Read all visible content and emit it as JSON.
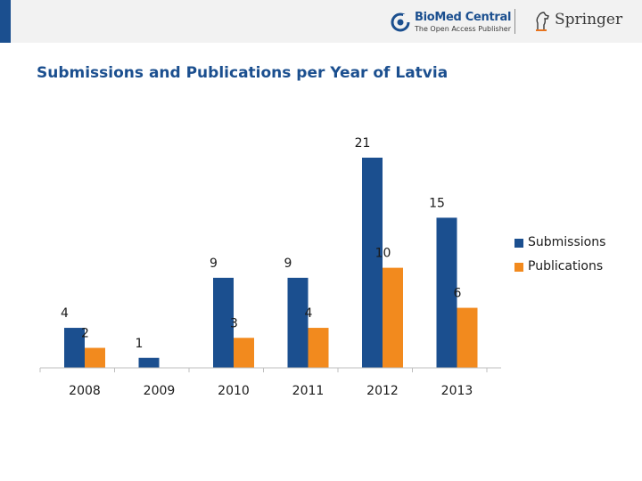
{
  "header": {
    "biomed_name": "BioMed Central",
    "biomed_tagline": "The Open Access Publisher",
    "springer_name": "Springer"
  },
  "colors": {
    "submissions": "#1b4f8f",
    "publications": "#f28a1e",
    "title": "#1b4f8f"
  },
  "chart_data": {
    "type": "bar",
    "title": "Submissions and Publications per Year of Latvia",
    "categories": [
      "2008",
      "2009",
      "2010",
      "2011",
      "2012",
      "2013"
    ],
    "series": [
      {
        "name": "Submissions",
        "values": [
          4,
          1,
          9,
          9,
          21,
          15
        ]
      },
      {
        "name": "Publications",
        "values": [
          2,
          null,
          3,
          4,
          10,
          6
        ]
      }
    ],
    "xlabel": "",
    "ylabel": "",
    "ylim": [
      0,
      21
    ],
    "grid": false,
    "legend": "right"
  }
}
